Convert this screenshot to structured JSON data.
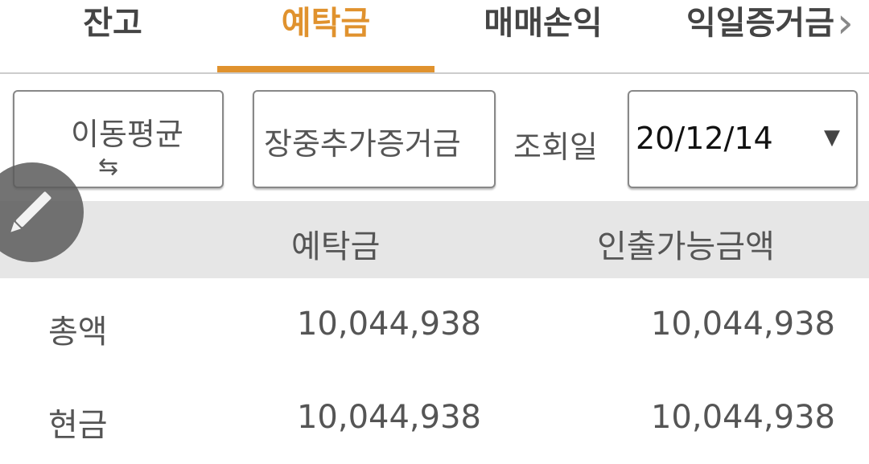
{
  "tabs": [
    {
      "label": "잔고"
    },
    {
      "label": "예탁금",
      "active": true
    },
    {
      "label": "매매손익"
    },
    {
      "label": "익일증거금"
    }
  ],
  "accent": "#e0922e",
  "controls": {
    "moving_avg": "이동평균",
    "swap_icon": "⇆",
    "intraday_margin": "장중추가증거금",
    "query_date_label": "조회일",
    "query_date": "20/12/14"
  },
  "table": {
    "headers": [
      "예탁금",
      "인출가능금액"
    ],
    "rows": [
      {
        "label": "총액",
        "deposit": "10,044,938",
        "withdrawable": "10,044,938"
      },
      {
        "label": "현금",
        "deposit": "10,044,938",
        "withdrawable": "10,044,938"
      }
    ]
  }
}
